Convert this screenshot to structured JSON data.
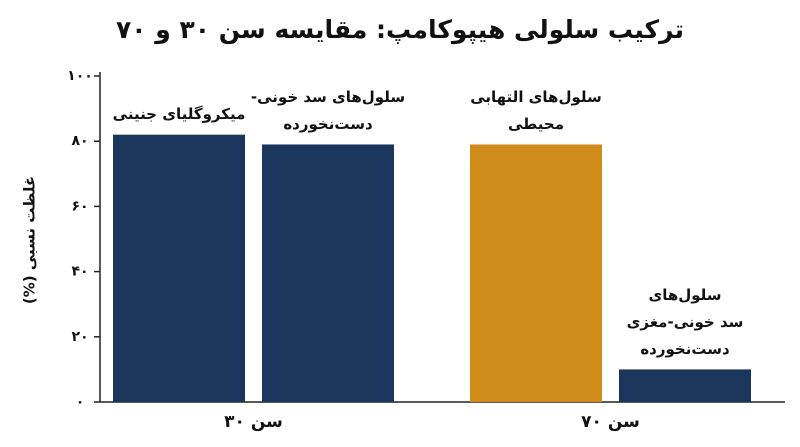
{
  "chart_data": {
    "type": "bar",
    "title": "ترکیب سلولی هیپوکامپ: مقایسه سن ۳۰ و ۷۰",
    "y_label": "غلظت نسبی (%)",
    "ylim": [
      0,
      100
    ],
    "yticks": [
      {
        "value": 0,
        "label": "۰"
      },
      {
        "value": 20,
        "label": "۲۰"
      },
      {
        "value": 40,
        "label": "۴۰"
      },
      {
        "value": 60,
        "label": "۶۰"
      },
      {
        "value": 80,
        "label": "۸۰"
      },
      {
        "value": 100,
        "label": "۱۰۰"
      }
    ],
    "groups": [
      {
        "name": "سن ۳۰",
        "bars": [
          {
            "label": [
              "میکروگلیای جنینی"
            ],
            "value": 82,
            "color": "#1b365d"
          },
          {
            "label": [
              "سلول‌های سد خونی-",
              "دست‌نخورده"
            ],
            "value": 79,
            "color": "#1b365d"
          }
        ]
      },
      {
        "name": "سن ۷۰",
        "bars": [
          {
            "label": [
              "سلول‌های التهابی",
              "محیطی"
            ],
            "value": 79,
            "color": "#d08c1a"
          },
          {
            "label": [
              "سلول‌های",
              "سد خونی-مغزی",
              "دست‌نخورده"
            ],
            "value": 10,
            "color": "#1b365d"
          }
        ]
      }
    ]
  }
}
